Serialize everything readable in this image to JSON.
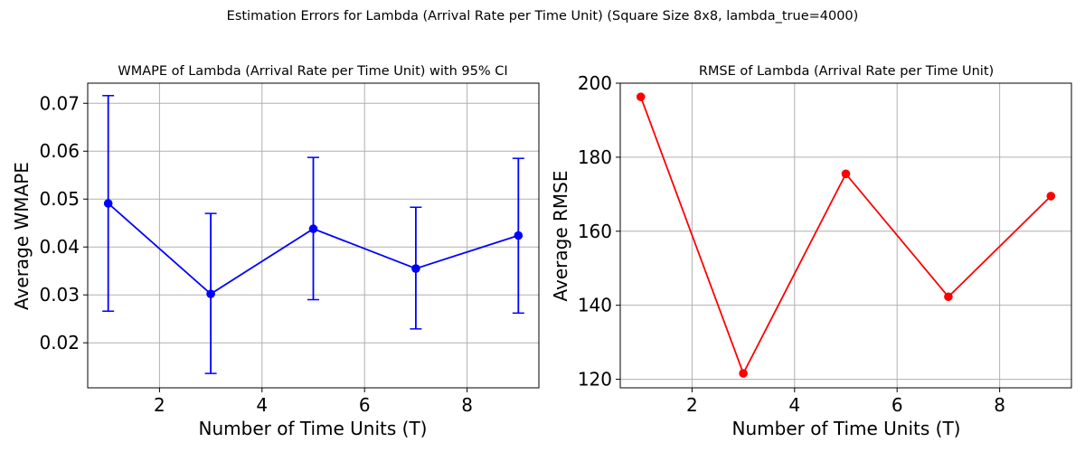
{
  "figure": {
    "suptitle": "Estimation Errors for Lambda (Arrival Rate per Time Unit) (Square Size 8x8, lambda_true=4000)"
  },
  "chart_data": [
    {
      "type": "line",
      "title": "WMAPE of Lambda (Arrival Rate per Time Unit) with 95% CI",
      "xlabel": "Number of Time Units (T)",
      "ylabel": "Average WMAPE",
      "xlim": [
        0.6,
        9.4
      ],
      "ylim": [
        0.0106,
        0.0742
      ],
      "xticks": [
        2,
        4,
        6,
        8
      ],
      "yticks": [
        0.02,
        0.03,
        0.04,
        0.05,
        0.06,
        0.07
      ],
      "ytick_labels": [
        "0.02",
        "0.03",
        "0.04",
        "0.05",
        "0.06",
        "0.07"
      ],
      "grid": true,
      "color": "#0000ff",
      "error_bars": "95% CI",
      "series": [
        {
          "x": [
            1,
            3,
            5,
            7,
            9
          ],
          "values": [
            0.0491,
            0.0302,
            0.0438,
            0.0355,
            0.0424
          ],
          "ci_low": [
            0.0266,
            0.0136,
            0.029,
            0.0229,
            0.0262
          ],
          "ci_high": [
            0.0716,
            0.047,
            0.0587,
            0.0483,
            0.0585
          ]
        }
      ]
    },
    {
      "type": "line",
      "title": "RMSE of Lambda (Arrival Rate per Time Unit)",
      "xlabel": "Number of Time Units (T)",
      "ylabel": "Average RMSE",
      "xlim": [
        0.6,
        9.4
      ],
      "ylim": [
        117.7,
        200.0
      ],
      "xticks": [
        2,
        4,
        6,
        8
      ],
      "yticks": [
        120,
        140,
        160,
        180,
        200
      ],
      "ytick_labels": [
        "120",
        "140",
        "160",
        "180",
        "200"
      ],
      "grid": true,
      "color": "#ff0000",
      "series": [
        {
          "x": [
            1,
            3,
            5,
            7,
            9
          ],
          "values": [
            196.3,
            121.6,
            175.5,
            142.3,
            169.5
          ]
        }
      ]
    }
  ]
}
